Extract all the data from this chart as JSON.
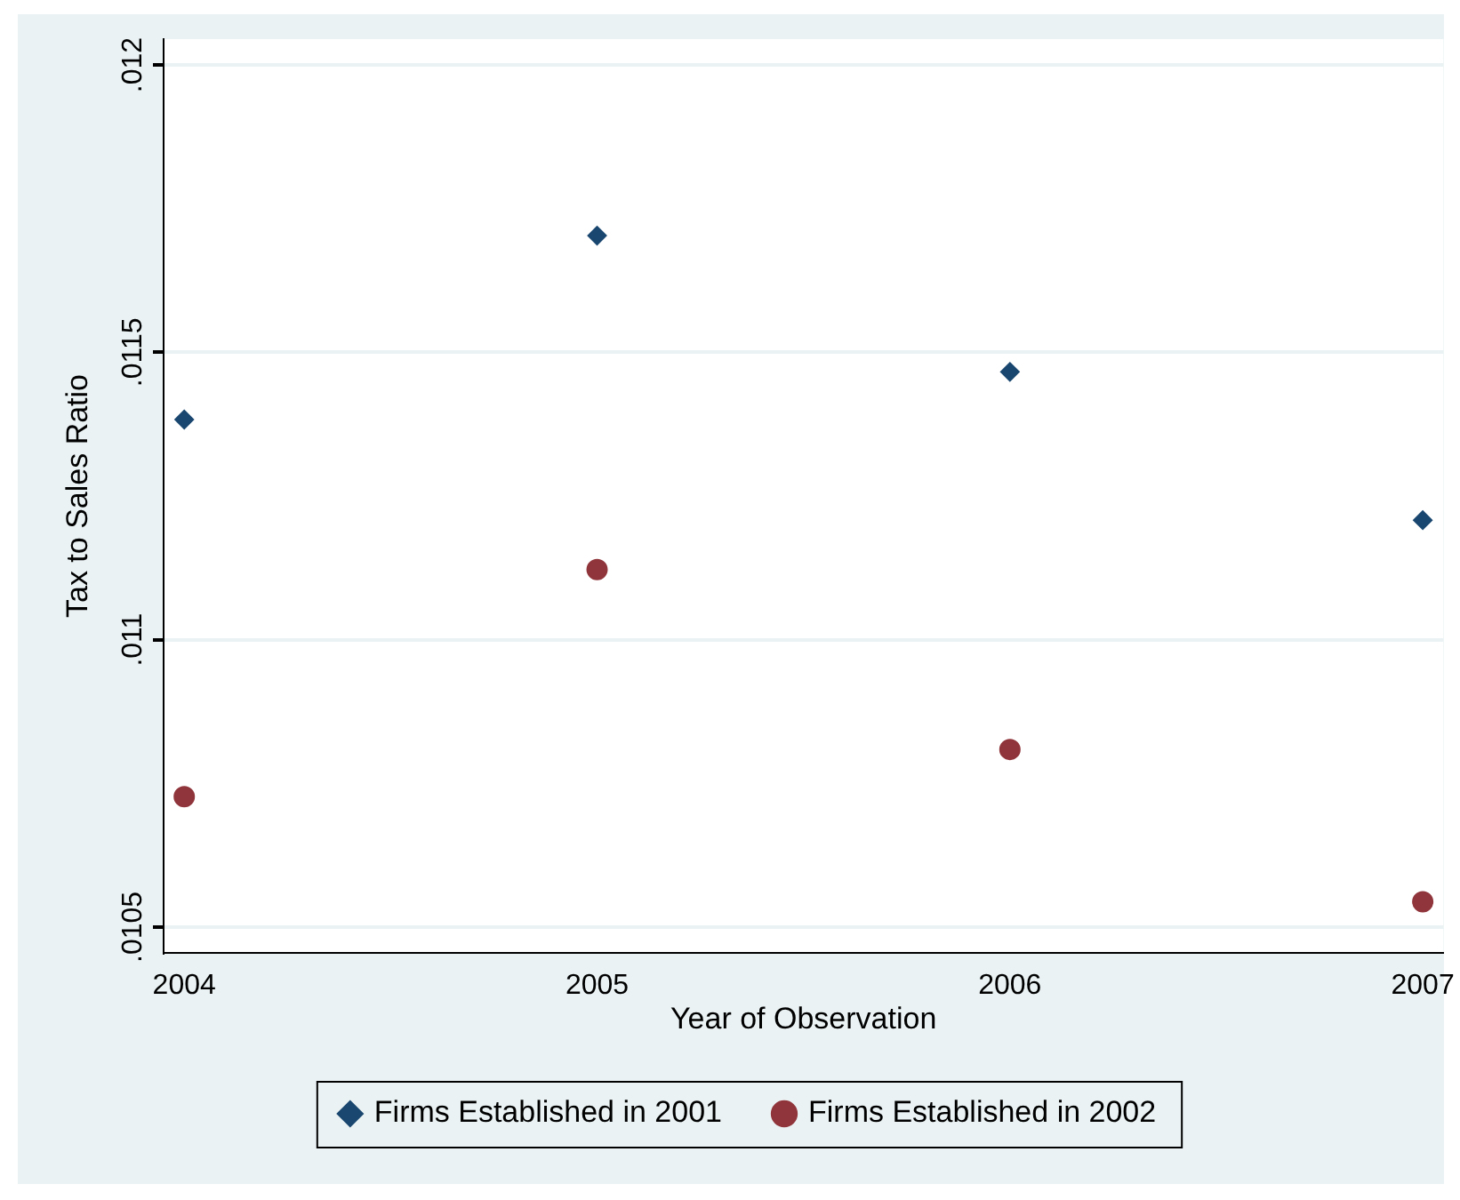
{
  "chart_data": {
    "type": "scatter",
    "xlabel": "Year of Observation",
    "ylabel": "Tax to Sales Ratio",
    "x": [
      2004,
      2005,
      2006,
      2007
    ],
    "series": [
      {
        "name": "Firms Established in 2001",
        "color": "#1a476f",
        "marker": "diamond",
        "values": [
          0.011383,
          0.011703,
          0.011466,
          0.011208
        ]
      },
      {
        "name": "Firms Established in 2002",
        "color": "#90353b",
        "marker": "circle",
        "values": [
          0.010727,
          0.011122,
          0.010809,
          0.010544
        ]
      }
    ],
    "xlim": [
      2003.95,
      2007.05
    ],
    "xticks": [
      2004,
      2005,
      2006,
      2007
    ],
    "ylim": [
      0.010455,
      0.012045
    ],
    "yticks": [
      {
        "value": 0.0105,
        "label": ".0105"
      },
      {
        "value": 0.011,
        "label": ".011"
      },
      {
        "value": 0.0115,
        "label": ".0115"
      },
      {
        "value": 0.012,
        "label": ".012"
      }
    ],
    "grid": "y",
    "legend": "bottom"
  }
}
